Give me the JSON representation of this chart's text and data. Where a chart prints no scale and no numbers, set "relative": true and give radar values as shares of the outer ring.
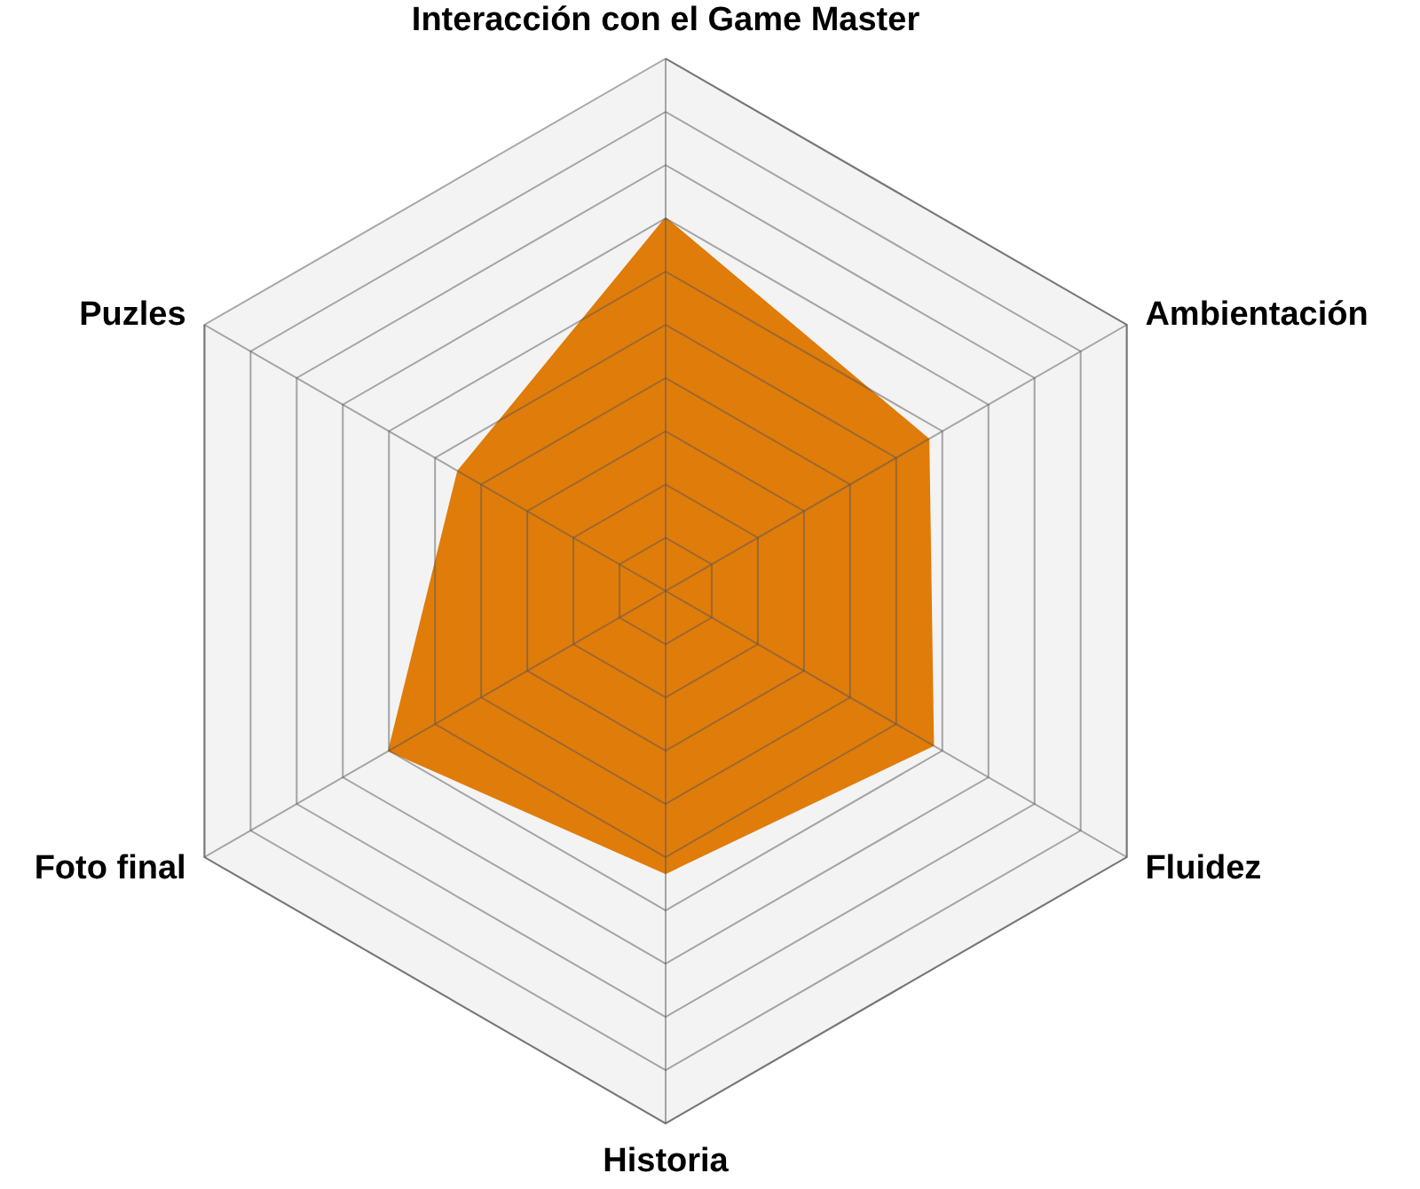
{
  "chart_data": {
    "type": "radar",
    "relative": true,
    "grid": true,
    "categories": [
      "Interacción con el Game Master",
      "Ambientación",
      "Fluidez",
      "Historia",
      "Foto final",
      "Puzles"
    ],
    "series": [
      {
        "color": "#e07c0a",
        "values": [
          0.7,
          0.57,
          0.58,
          0.53,
          0.6,
          0.45
        ]
      }
    ]
  }
}
